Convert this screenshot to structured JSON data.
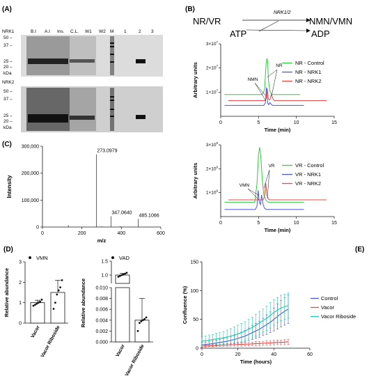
{
  "panels": {
    "A": {
      "letter": "(A)",
      "lane_labels": [
        "B.I",
        "A.I",
        "Ins.",
        "C.L.",
        "W1",
        "W2",
        "M",
        "1",
        "2",
        "3"
      ],
      "gels": [
        {
          "label": "NRK1",
          "markers": [
            "50 –",
            "37 –",
            "25 –",
            "20 –",
            "kDa"
          ]
        },
        {
          "label": "NRK2",
          "markers": [
            "50 –",
            "37 –",
            "25 –",
            "20 –",
            "kDa"
          ]
        }
      ]
    },
    "B": {
      "letter": "(B)",
      "reaction": {
        "substrate": "NR/VR",
        "enzyme": "NRK1/2",
        "product": "NMN/VMN",
        "cofactor_in": "ATP",
        "cofactor_out": "ADP"
      }
    },
    "C": {
      "letter": "(C)"
    },
    "D": {
      "letter": "(D)"
    },
    "E": {
      "letter": "(E)"
    }
  },
  "colors": {
    "green": "#2ecc40",
    "blue": "#4a55d9",
    "red": "#e84a4a",
    "teal": "#22c7a9"
  },
  "chart_data": [
    {
      "id": "nr_chrom",
      "type": "line",
      "xlabel": "Time (min)",
      "ylabel": "Arbitrary units",
      "xlim": [
        0,
        15
      ],
      "xticks": [
        0,
        5,
        10,
        15
      ],
      "ylim": [
        0,
        30000000
      ],
      "yticks": [
        {
          "v": 10000000,
          "base": "1×10",
          "exp": "7"
        },
        {
          "v": 20000000,
          "base": "2×10",
          "exp": "7"
        },
        {
          "v": 30000000,
          "base": "3×10",
          "exp": "7"
        }
      ],
      "annotations": [
        "NMN",
        "NR"
      ],
      "series": [
        {
          "name": "NR - Control",
          "color": "#2ecc40",
          "offset": 9000000,
          "x": [
            0.5,
            5.5,
            5.8,
            6.0,
            6.1,
            6.2,
            6.3,
            6.5,
            6.7,
            7.0,
            10.5
          ],
          "y": [
            0,
            0,
            2000000,
            13000000,
            15000000,
            14000000,
            6000000,
            1500000,
            300000,
            0,
            0
          ]
        },
        {
          "name": "NR - NRK1",
          "color": "#4a55d9",
          "offset": 4500000,
          "x": [
            0.5,
            5.7,
            5.9,
            6.05,
            6.2,
            6.35,
            6.5,
            6.65,
            6.8,
            7.0,
            11.0
          ],
          "y": [
            0,
            0,
            1000000,
            7500000,
            1000000,
            300000,
            1200000,
            600000,
            100000,
            0,
            0
          ]
        },
        {
          "name": "NR - NRK2",
          "color": "#e84a4a",
          "offset": 6500000,
          "x": [
            1.0,
            5.8,
            6.0,
            6.15,
            6.3,
            6.5,
            6.7,
            6.9,
            7.1,
            14.0
          ],
          "y": [
            0,
            0,
            800000,
            5000000,
            600000,
            300000,
            2500000,
            700000,
            0,
            0
          ]
        }
      ]
    },
    {
      "id": "vr_chrom",
      "type": "line",
      "xlabel": "Time (min)",
      "ylabel": "Arbitrary units",
      "xlim": [
        0,
        15
      ],
      "xticks": [
        0,
        5,
        10,
        15
      ],
      "ylim": [
        0,
        3000000000
      ],
      "yticks": [
        {
          "v": 1000000000,
          "base": "1×10",
          "exp": "9"
        },
        {
          "v": 2000000000,
          "base": "2×10",
          "exp": "9"
        },
        {
          "v": 3000000000,
          "base": "3×10",
          "exp": "9"
        }
      ],
      "annotations": [
        "VMN",
        "VR"
      ],
      "series": [
        {
          "name": "VR - Control",
          "color": "#2ecc40",
          "offset": 600000000,
          "x": [
            0.5,
            4.5,
            4.8,
            5.0,
            5.15,
            5.3,
            5.5,
            5.7,
            6.0,
            6.3,
            11.0
          ],
          "y": [
            0,
            0,
            800000000,
            2000000000,
            2300000000,
            1900000000,
            900000000,
            300000000,
            80000000,
            0,
            0
          ]
        },
        {
          "name": "VR - NRK1",
          "color": "#4a55d9",
          "offset": 300000000,
          "x": [
            0.5,
            4.6,
            4.8,
            4.95,
            5.1,
            5.25,
            5.4,
            5.6,
            5.8,
            6.0,
            11.0
          ],
          "y": [
            0,
            0,
            150000000,
            800000000,
            300000000,
            200000000,
            600000000,
            200000000,
            50000000,
            0,
            0
          ]
        },
        {
          "name": "VR - NRK2",
          "color": "#e84a4a",
          "offset": 700000000,
          "x": [
            1.0,
            5.6,
            5.8,
            5.95,
            6.1,
            6.3,
            6.5,
            14.0
          ],
          "y": [
            0,
            0,
            150000000,
            700000000,
            200000000,
            30000000,
            0,
            0
          ]
        }
      ]
    },
    {
      "id": "mass_spec",
      "type": "bar",
      "xlabel": "m/z",
      "ylabel": "Intensity",
      "xlim": [
        0,
        600
      ],
      "xticks": [
        0,
        200,
        400,
        600
      ],
      "ylim": [
        0,
        300000
      ],
      "ytick_labels": [
        "0",
        "100,000",
        "200,000",
        "300,000"
      ],
      "yticks": [
        0,
        100000,
        200000,
        300000
      ],
      "peaks": [
        {
          "mz": 131,
          "intensity": 7000
        },
        {
          "mz": 273.0979,
          "intensity": 270000,
          "label": "273.0979"
        },
        {
          "mz": 347.064,
          "intensity": 40000,
          "label": "347.0640"
        },
        {
          "mz": 485.1066,
          "intensity": 30000,
          "label": "485.1066"
        },
        {
          "mz": 300,
          "intensity": 3000
        },
        {
          "mz": 395,
          "intensity": 2500
        }
      ]
    },
    {
      "id": "vmn_bar",
      "type": "bar",
      "legend": "VMN",
      "ylabel": "Relative abundance",
      "ylim": [
        0,
        3
      ],
      "yticks": [
        0,
        1,
        2,
        3
      ],
      "categories": [
        "Vacor",
        "Vacor Riboside"
      ],
      "values": [
        1.0,
        1.5
      ],
      "errors": [
        0.12,
        0.6
      ],
      "points": [
        [
          0.85,
          0.9,
          0.95,
          1.0,
          1.05,
          1.15
        ],
        [
          0.7,
          1.0,
          1.4,
          1.6,
          1.75,
          2.1
        ]
      ]
    },
    {
      "id": "vad_bar",
      "type": "bar",
      "legend": "VAD",
      "ylabel": "Relative abundance",
      "broken_axis": true,
      "upper_yticks": [
        {
          "v": 0.5,
          "t": "0.5"
        },
        {
          "v": 1.0,
          "t": "1.0"
        },
        {
          "v": 1.5,
          "t": "1.5"
        }
      ],
      "lower_yticks": [
        {
          "v": 0,
          "t": "0.000"
        },
        {
          "v": 0.002,
          "t": "0.002"
        },
        {
          "v": 0.004,
          "t": "0.004"
        },
        {
          "v": 0.006,
          "t": "0.006"
        },
        {
          "v": 0.008,
          "t": "0.008"
        },
        {
          "v": 0.01,
          "t": "0.010"
        }
      ],
      "categories": [
        "Vacor",
        "Vacor Riboside"
      ],
      "values": [
        1.0,
        0.004
      ],
      "errors": [
        0.06,
        0.004
      ],
      "points": [
        [
          0.94,
          0.97,
          1.0,
          1.02,
          1.05,
          1.08
        ],
        [
          0.002,
          0.0035,
          0.0038,
          0.004,
          0.0042,
          0.0045
        ]
      ]
    },
    {
      "id": "confluence",
      "type": "line",
      "xlabel": "Time (hours)",
      "ylabel": "Confluence (%)",
      "xlim": [
        0,
        60
      ],
      "xticks": [
        0,
        20,
        40,
        60
      ],
      "ylim": [
        0,
        150
      ],
      "yticks": [
        0,
        50,
        100,
        150
      ],
      "x": [
        0,
        2,
        4,
        6,
        8,
        10,
        12,
        14,
        16,
        18,
        20,
        22,
        24,
        26,
        28,
        30,
        32,
        34,
        36,
        38,
        40,
        42,
        44,
        46,
        48
      ],
      "series": [
        {
          "name": "Control",
          "color": "#4a55d9",
          "values": [
            6,
            6.5,
            7,
            8,
            9,
            10,
            11,
            12,
            13.5,
            15,
            17,
            19,
            21,
            24,
            27,
            30,
            33,
            37,
            41,
            45,
            50,
            55,
            60,
            64,
            68
          ],
          "errors": [
            4,
            4,
            4,
            5,
            5,
            5,
            6,
            6,
            7,
            7,
            8,
            9,
            10,
            11,
            12,
            13,
            14,
            15,
            17,
            18,
            20,
            22,
            23,
            24,
            25
          ]
        },
        {
          "name": "Vacor",
          "color": "#e84a4a",
          "values": [
            4,
            4,
            4.5,
            4.5,
            5,
            5,
            5.5,
            5.5,
            6,
            6,
            6.5,
            6.5,
            7,
            7,
            7.5,
            8,
            8,
            8.5,
            9,
            9,
            9.5,
            10,
            10,
            10.5,
            11
          ],
          "errors": [
            2,
            2,
            2,
            2,
            2,
            2,
            2.5,
            2.5,
            2.5,
            2.5,
            3,
            3,
            3,
            3,
            3,
            3.5,
            3.5,
            3.5,
            4,
            4,
            4,
            4,
            4,
            4.5,
            4.5
          ]
        },
        {
          "name": "Vacor Riboside",
          "color": "#22c7a9",
          "values": [
            12,
            13,
            14,
            15,
            16,
            17,
            18,
            19.5,
            21,
            23,
            25,
            27,
            30,
            33,
            36,
            40,
            44,
            48,
            52,
            57,
            62,
            66,
            70,
            72,
            74
          ],
          "errors": [
            8,
            8,
            9,
            9,
            10,
            10,
            11,
            12,
            13,
            14,
            15,
            16,
            16,
            17,
            18,
            19,
            20,
            20,
            21,
            22,
            22,
            22,
            22,
            22,
            22
          ]
        }
      ]
    }
  ]
}
